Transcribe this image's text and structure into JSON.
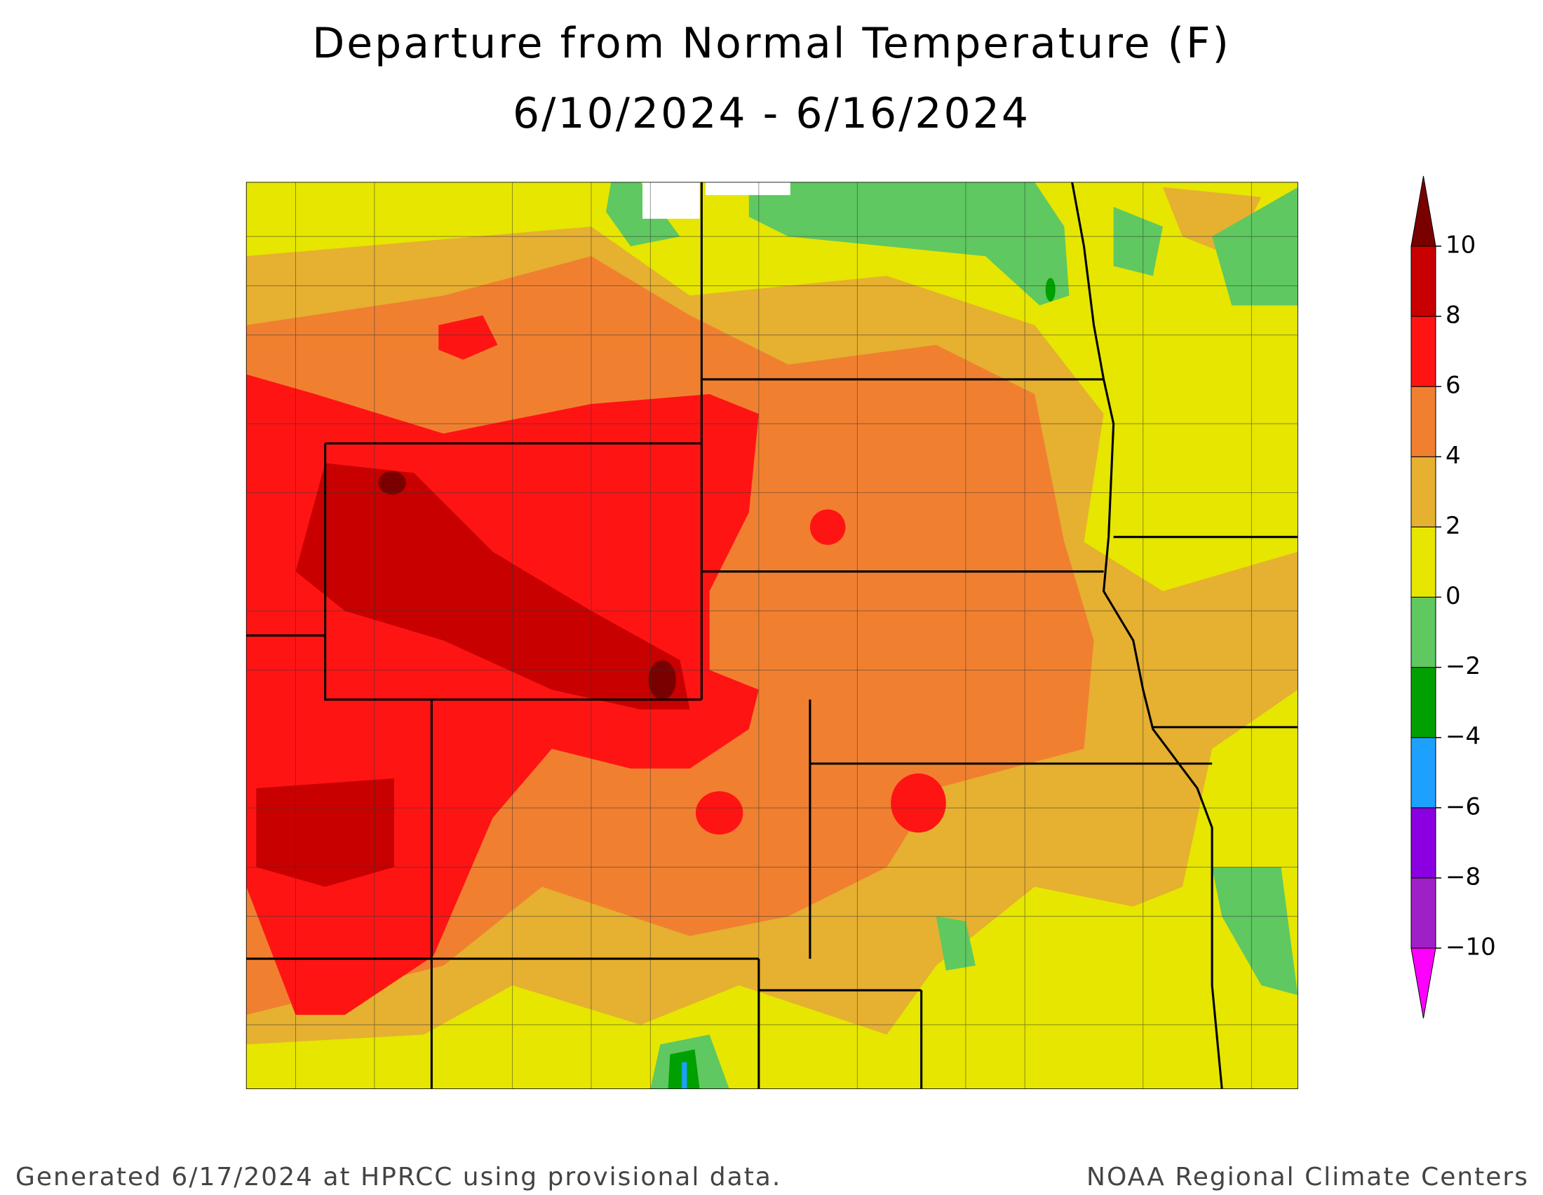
{
  "header": {
    "title": "Departure from Normal Temperature (F)",
    "subtitle": "6/10/2024 - 6/16/2024"
  },
  "legend": {
    "ticks": [
      {
        "value": -10,
        "label": "−10"
      },
      {
        "value": -8,
        "label": "−8"
      },
      {
        "value": -6,
        "label": "−6"
      },
      {
        "value": -4,
        "label": "−4"
      },
      {
        "value": -2,
        "label": "−2"
      },
      0,
      2,
      4,
      6,
      8,
      10
    ],
    "colors": [
      "#ff00ff",
      "#a020c8",
      "#8a00e0",
      "#1ea0ff",
      "#00a000",
      "#5fc860",
      "#e6e600",
      "#e6b030",
      "#f08030",
      "#ff1414",
      "#c80000",
      "#7a0000"
    ]
  },
  "footer": {
    "left": "Generated 6/17/2024 at HPRCC using provisional data.",
    "right": "NOAA Regional Climate Centers"
  }
}
